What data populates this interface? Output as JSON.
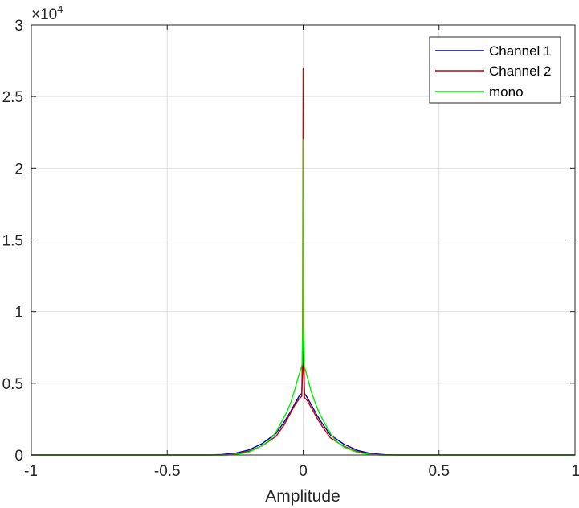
{
  "chart_data": {
    "type": "line",
    "xlabel": "Amplitude",
    "ylabel": "",
    "title": "",
    "xlim": [
      -1,
      1
    ],
    "ylim": [
      0,
      30000
    ],
    "y_exponent_label": "×10",
    "y_exponent_power": "4",
    "x_ticks": [
      {
        "value": -1,
        "label": "-1"
      },
      {
        "value": -0.5,
        "label": "-0.5"
      },
      {
        "value": 0,
        "label": "0"
      },
      {
        "value": 0.5,
        "label": "0.5"
      },
      {
        "value": 1,
        "label": "1"
      }
    ],
    "y_ticks": [
      {
        "value": 0,
        "label": "0"
      },
      {
        "value": 5000,
        "label": "0.5"
      },
      {
        "value": 10000,
        "label": "1"
      },
      {
        "value": 15000,
        "label": "1.5"
      },
      {
        "value": 20000,
        "label": "2"
      },
      {
        "value": 25000,
        "label": "2.5"
      },
      {
        "value": 30000,
        "label": "3"
      }
    ],
    "grid": true,
    "legend_position": "top-right",
    "series": [
      {
        "name": "Channel 1",
        "color": "#0000aa",
        "points": [
          [
            -1,
            0
          ],
          [
            -0.35,
            0
          ],
          [
            -0.3,
            30
          ],
          [
            -0.25,
            120
          ],
          [
            -0.2,
            350
          ],
          [
            -0.15,
            800
          ],
          [
            -0.1,
            1500
          ],
          [
            -0.07,
            2300
          ],
          [
            -0.05,
            2900
          ],
          [
            -0.03,
            3600
          ],
          [
            -0.015,
            4100
          ],
          [
            -0.005,
            4300
          ],
          [
            -0.002,
            6000
          ],
          [
            0,
            7200
          ],
          [
            0.002,
            6000
          ],
          [
            0.005,
            4300
          ],
          [
            0.015,
            4000
          ],
          [
            0.03,
            3500
          ],
          [
            0.05,
            2800
          ],
          [
            0.07,
            2200
          ],
          [
            0.1,
            1400
          ],
          [
            0.15,
            750
          ],
          [
            0.2,
            320
          ],
          [
            0.25,
            100
          ],
          [
            0.3,
            25
          ],
          [
            0.35,
            0
          ],
          [
            1,
            0
          ]
        ]
      },
      {
        "name": "Channel 2",
        "color": "#cc0000",
        "points": [
          [
            -1,
            0
          ],
          [
            -0.3,
            0
          ],
          [
            -0.25,
            60
          ],
          [
            -0.2,
            250
          ],
          [
            -0.15,
            650
          ],
          [
            -0.1,
            1300
          ],
          [
            -0.07,
            2100
          ],
          [
            -0.05,
            2800
          ],
          [
            -0.03,
            3500
          ],
          [
            -0.015,
            3900
          ],
          [
            -0.005,
            4100
          ],
          [
            -0.002,
            8000
          ],
          [
            0,
            27000
          ],
          [
            0.002,
            8000
          ],
          [
            0.005,
            4000
          ],
          [
            0.015,
            3800
          ],
          [
            0.03,
            3300
          ],
          [
            0.05,
            2600
          ],
          [
            0.07,
            2000
          ],
          [
            0.1,
            1200
          ],
          [
            0.15,
            600
          ],
          [
            0.2,
            230
          ],
          [
            0.25,
            50
          ],
          [
            0.3,
            0
          ],
          [
            1,
            0
          ]
        ]
      },
      {
        "name": "mono",
        "color": "#00ee00",
        "points": [
          [
            -1,
            0
          ],
          [
            -0.28,
            0
          ],
          [
            -0.24,
            60
          ],
          [
            -0.2,
            200
          ],
          [
            -0.15,
            650
          ],
          [
            -0.12,
            1100
          ],
          [
            -0.1,
            1600
          ],
          [
            -0.08,
            2300
          ],
          [
            -0.06,
            3000
          ],
          [
            -0.045,
            3700
          ],
          [
            -0.03,
            4600
          ],
          [
            -0.02,
            5300
          ],
          [
            -0.01,
            5900
          ],
          [
            -0.004,
            6300
          ],
          [
            -0.001,
            9000
          ],
          [
            0,
            22000
          ],
          [
            0.001,
            9000
          ],
          [
            0.004,
            6200
          ],
          [
            0.01,
            5800
          ],
          [
            0.02,
            5100
          ],
          [
            0.03,
            4400
          ],
          [
            0.045,
            3600
          ],
          [
            0.06,
            2900
          ],
          [
            0.08,
            2200
          ],
          [
            0.1,
            1500
          ],
          [
            0.12,
            1000
          ],
          [
            0.15,
            550
          ],
          [
            0.2,
            180
          ],
          [
            0.24,
            50
          ],
          [
            0.28,
            0
          ],
          [
            1,
            0
          ]
        ]
      }
    ]
  }
}
